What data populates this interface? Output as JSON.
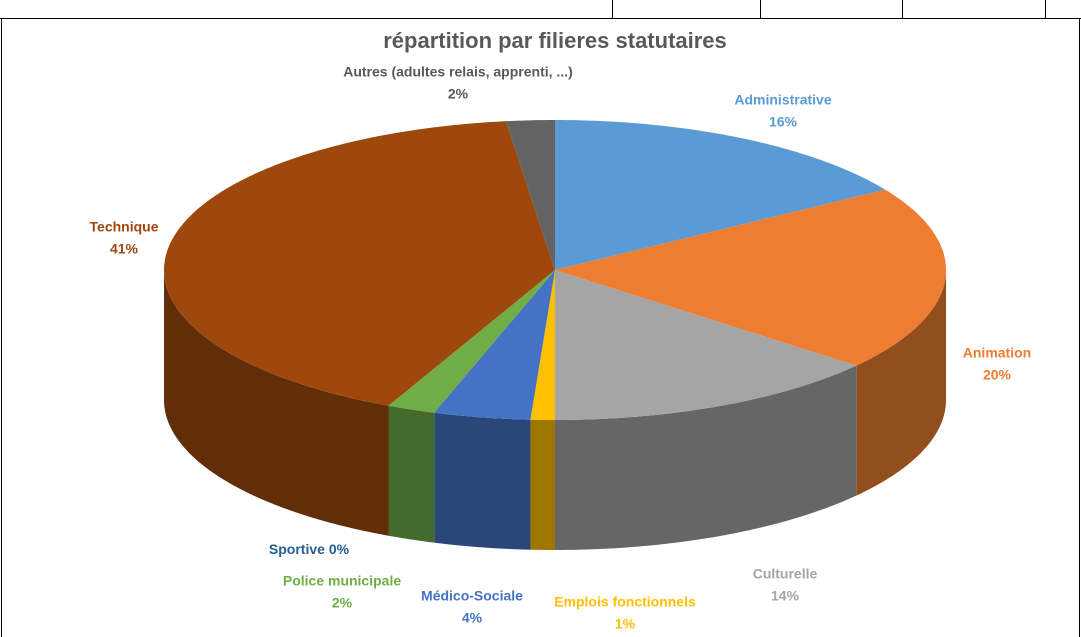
{
  "chart_data": {
    "type": "pie3d",
    "title": "répartition par filieres statutaires",
    "categories": [
      "Administrative",
      "Animation",
      "Culturelle",
      "Emplois fonctionnels",
      "Médico-Sociale",
      "Sportive",
      "Police municipale",
      "Technique",
      "Autres (adultes relais, apprenti, ...)"
    ],
    "values": [
      16,
      20,
      14,
      1,
      4,
      0,
      2,
      41,
      2
    ],
    "value_labels": [
      "16%",
      "20%",
      "14%",
      "1%",
      "4%",
      "0%",
      "2%",
      "41%",
      "2%"
    ],
    "colors": [
      "#5b9bd5",
      "#ed7d31",
      "#a5a5a5",
      "#ffc000",
      "#4472c4",
      "#255e91",
      "#70ad47",
      "#9e480e",
      "#636363"
    ]
  }
}
